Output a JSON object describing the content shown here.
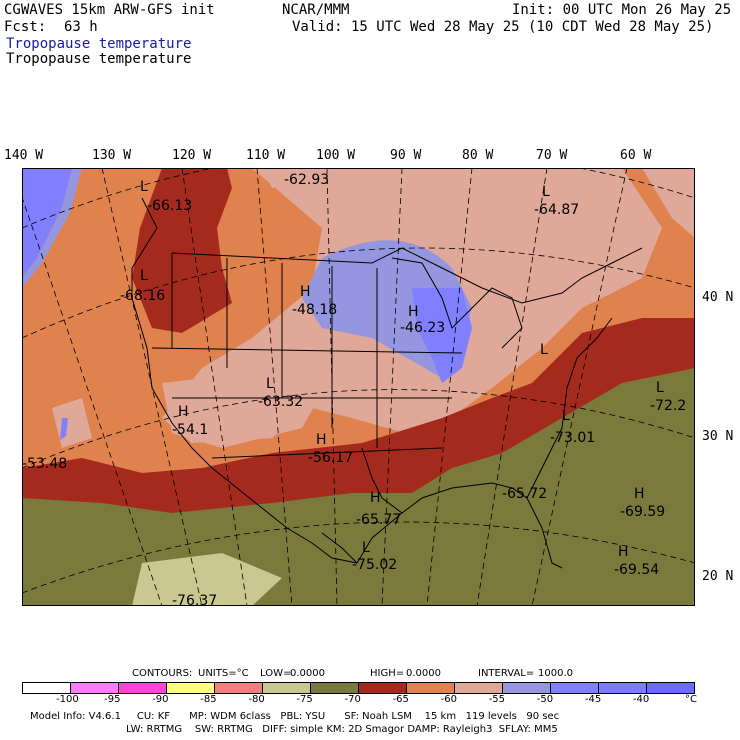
{
  "header": {
    "model": "CGWAVES 15km ARW-GFS init",
    "org": "NCAR/MMM",
    "init": "Init: 00 UTC Mon 26 May 25",
    "fcst_label": "Fcst:",
    "fcst_value": "63 h",
    "valid": "Valid: 15 UTC Wed 28 May 25 (10 CDT Wed 28 May 25)",
    "field_title_1": "Tropopause temperature",
    "field_title_2": "Tropopause temperature"
  },
  "longitude_labels": [
    "140 W",
    "130 W",
    "120 W",
    "110 W",
    "100 W",
    "90 W",
    "80 W",
    "70 W",
    "60 W"
  ],
  "latitude_labels": [
    "40 N",
    "30 N",
    "20 N"
  ],
  "map_labels": [
    {
      "mark": "L",
      "value": "-66.13"
    },
    {
      "mark": "",
      "value": "-62.93"
    },
    {
      "mark": "L",
      "value": "-64.87"
    },
    {
      "mark": "L",
      "value": "-68.16"
    },
    {
      "mark": "H",
      "value": "-48.18"
    },
    {
      "mark": "H",
      "value": "-46.23"
    },
    {
      "mark": "L",
      "value": "-63.32"
    },
    {
      "mark": "H",
      "value": "-54.1"
    },
    {
      "mark": "H",
      "value": "-56.17"
    },
    {
      "mark": "",
      "value": "-53.48"
    },
    {
      "mark": "L",
      "value": "-73.01"
    },
    {
      "mark": "L",
      "value": "-72.2"
    },
    {
      "mark": "",
      "value": "-65.72"
    },
    {
      "mark": "H",
      "value": "-65.77"
    },
    {
      "mark": "H",
      "value": "-69.59"
    },
    {
      "mark": "H",
      "value": "-69.54"
    },
    {
      "mark": "L",
      "value": "-75.02"
    },
    {
      "mark": "",
      "value": "-76.37"
    },
    {
      "mark": "L",
      "value": ""
    }
  ],
  "contours": {
    "contours_label": "CONTOURS:",
    "units": "UNITS=°C",
    "low": "LOW=",
    "low_value": "0.0000",
    "high": "HIGH=",
    "high_value": "0.0000",
    "interval": "INTERVAL=",
    "interval_value": "1000.0"
  },
  "colorbar": {
    "colors": [
      "#ffffff",
      "#ff7cff",
      "#ff44d8",
      "#ffff80",
      "#f08080",
      "#c8c890",
      "#7a7a3c",
      "#a52a1e",
      "#e0824e",
      "#e0a898",
      "#9696e0",
      "#8080ff",
      "#7c7cff",
      "#6c6cff"
    ],
    "ticks": [
      "-100",
      "-95",
      "-90",
      "-85",
      "-80",
      "-75",
      "-70",
      "-65",
      "-60",
      "-55",
      "-50",
      "-45",
      "-40",
      "°C"
    ]
  },
  "footer": {
    "line1": "Model Info: V4.6.1     CU: KF      MP: WDM 6class   PBL: YSU      SF: Noah LSM    15 km   119 levels   90 sec",
    "line2": "LW: RRTMG    SW: RRTMG   DIFF: simple KM: 2D Smagor DAMP: Rayleigh3  SFLAY: MM5"
  }
}
